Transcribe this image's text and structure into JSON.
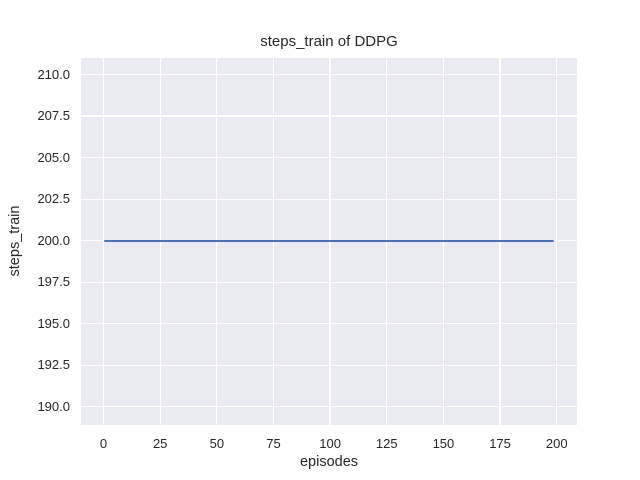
{
  "chart_data": {
    "type": "line",
    "title": "steps_train of DDPG",
    "xlabel": "episodes",
    "ylabel": "steps_train",
    "x_ticks": [
      0,
      25,
      50,
      75,
      100,
      125,
      150,
      175,
      200
    ],
    "y_tick_labels": [
      "210.0",
      "207.5",
      "205.0",
      "202.5",
      "200.0",
      "197.5",
      "195.0",
      "192.5",
      "190.0"
    ],
    "xlim": [
      -9.95,
      208.95
    ],
    "ylim": [
      188.9,
      211.0
    ],
    "grid": true,
    "legend": "none",
    "series": [
      {
        "name": "steps_train",
        "color": "#4c72b0",
        "x": [
          0,
          199
        ],
        "y": [
          200,
          200
        ],
        "note": "constant value 200 for all episodes 0-199"
      }
    ],
    "colors": {
      "plot_background": "#eaeaf2",
      "grid_color": "#ffffff",
      "text_color": "#262626",
      "figure_background": "#ffffff"
    }
  }
}
